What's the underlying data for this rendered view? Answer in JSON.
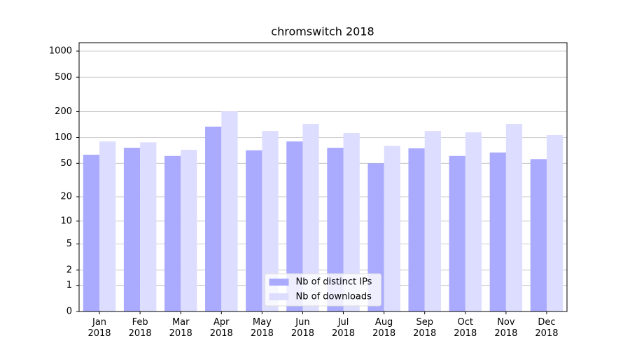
{
  "chart_data": {
    "type": "bar",
    "title": "chromswitch 2018",
    "categories": [
      "Jan\n2018",
      "Feb\n2018",
      "Mar\n2018",
      "Apr\n2018",
      "May\n2018",
      "Jun\n2018",
      "Jul\n2018",
      "Aug\n2018",
      "Sep\n2018",
      "Oct\n2018",
      "Nov\n2018",
      "Dec\n2018"
    ],
    "series": [
      {
        "name": "Nb of distinct IPs",
        "color": "#aaaaff",
        "values": [
          63,
          76,
          61,
          134,
          71,
          90,
          76,
          50,
          75,
          61,
          67,
          56
        ]
      },
      {
        "name": "Nb of downloads",
        "color": "#ddddff",
        "values": [
          90,
          88,
          72,
          201,
          119,
          144,
          113,
          80,
          119,
          115,
          144,
          107
        ]
      }
    ],
    "yscale": "log1p",
    "ylim": [
      0,
      1250
    ],
    "yticks": [
      0,
      1,
      2,
      5,
      10,
      20,
      50,
      100,
      200,
      500,
      1000
    ],
    "grid": true,
    "legend": "lower center"
  }
}
